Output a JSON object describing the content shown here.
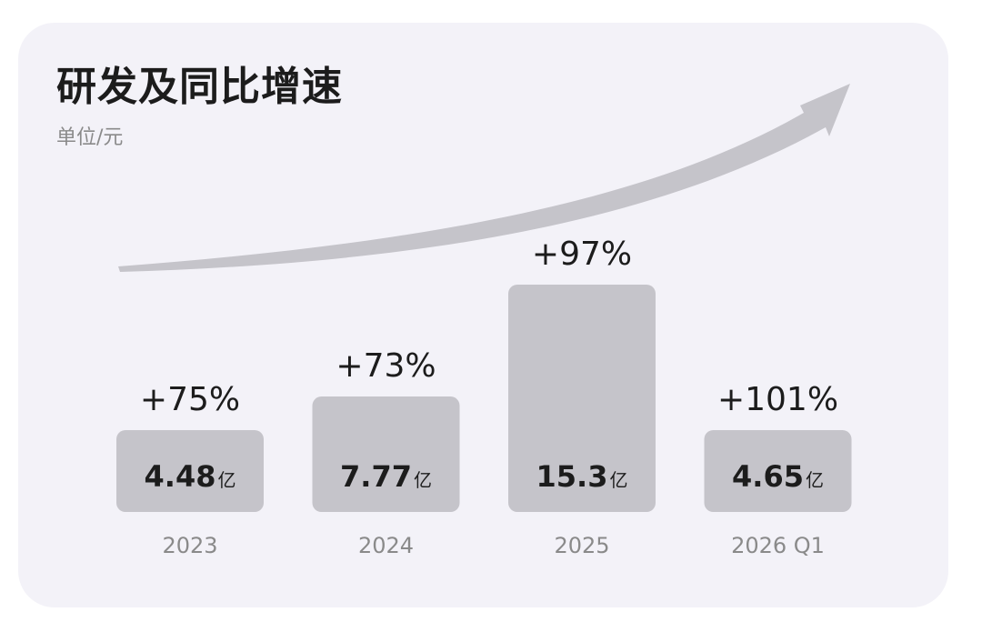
{
  "title": "研发及同比增速",
  "subtitle": "单位/元",
  "colors": {
    "card_background": "#f3f2f8",
    "bar": "#c5c4ca",
    "arrow": "#c5c4ca",
    "text_dark": "#1c1c1c",
    "text_muted": "#8a8a8a"
  },
  "chart_data": {
    "type": "bar",
    "title": "研发及同比增速",
    "subtitle": "单位/元",
    "categories": [
      "2023",
      "2024",
      "2025",
      "2026 Q1"
    ],
    "values": [
      4.48,
      7.77,
      15.3,
      4.65
    ],
    "value_labels": [
      "4.48",
      "7.77",
      "15.3",
      "4.65"
    ],
    "value_unit": "亿",
    "growth_labels": [
      "+75%",
      "+73%",
      "+97%",
      "+101%"
    ],
    "growth_values": [
      75,
      73,
      97,
      101
    ],
    "trend_arrow": "upward-curved",
    "grid": false,
    "legend": "none"
  }
}
